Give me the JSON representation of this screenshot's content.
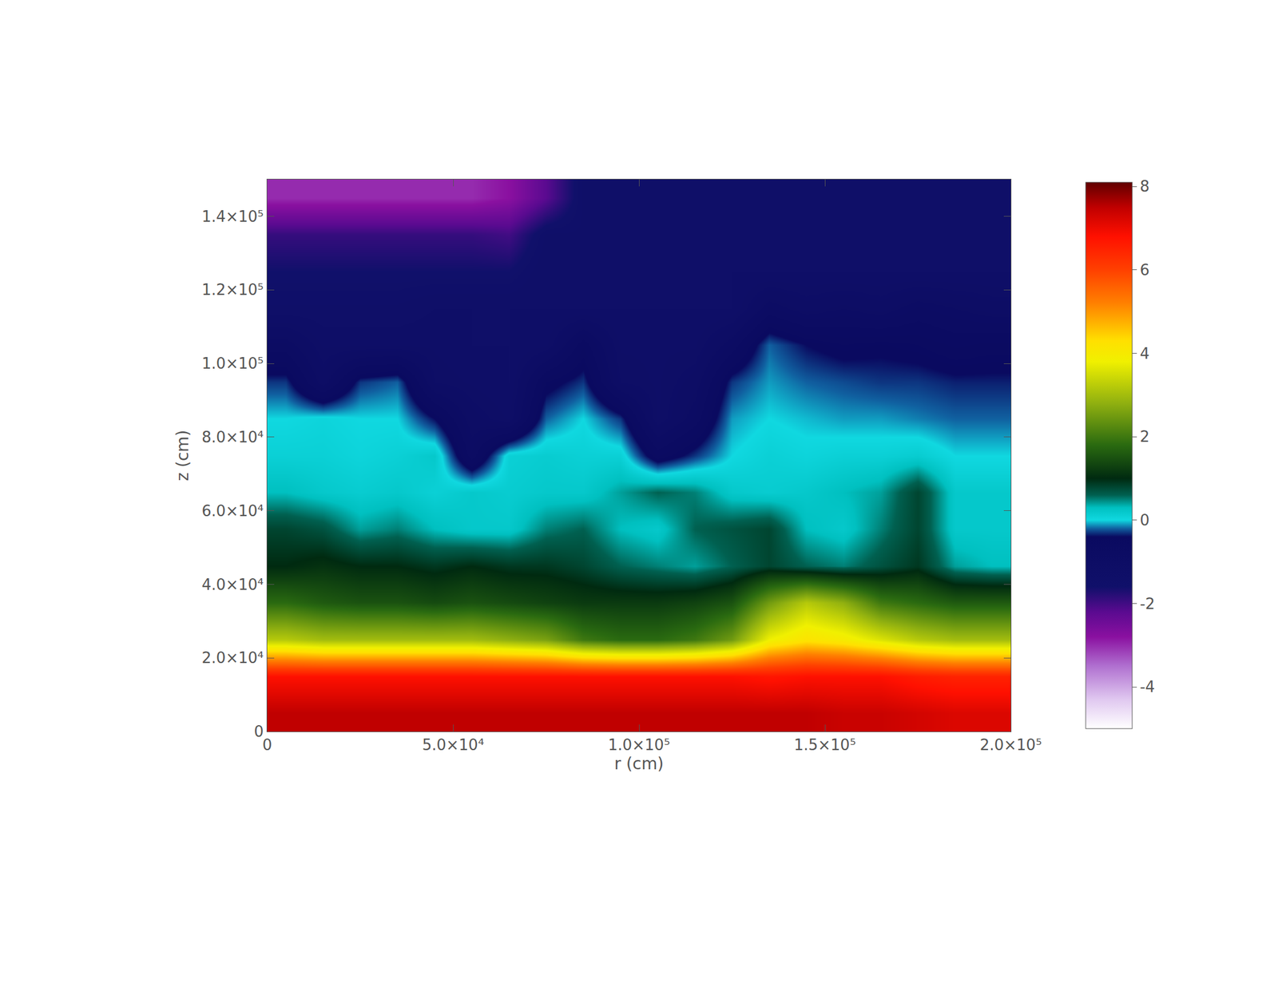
{
  "chart_data": {
    "type": "heatmap",
    "x_label": "r (cm)",
    "y_label": "z (cm)",
    "xlim": [
      0,
      200000
    ],
    "ylim": [
      0,
      150000
    ],
    "xticks": [
      0,
      {
        "value": 50000,
        "label": "5.0×10⁴"
      },
      {
        "value": 100000,
        "label": "1.0×10⁵"
      },
      {
        "value": 150000,
        "label": "1.5×10⁵"
      },
      {
        "value": 200000,
        "label": "2.0×10⁵"
      }
    ],
    "yticks": [
      0,
      {
        "value": 20000,
        "label": "2.0×10⁴"
      },
      {
        "value": 40000,
        "label": "4.0×10⁴"
      },
      {
        "value": 60000,
        "label": "6.0×10⁴"
      },
      {
        "value": 80000,
        "label": "8.0×10⁴"
      },
      {
        "value": 100000,
        "label": "1.0×10⁵"
      },
      {
        "value": 120000,
        "label": "1.2×10⁵"
      },
      {
        "value": 140000,
        "label": "1.4×10⁵"
      }
    ],
    "x": [
      5000,
      15000,
      25000,
      35000,
      45000,
      55000,
      65000,
      75000,
      85000,
      95000,
      105000,
      115000,
      125000,
      135000,
      145000,
      155000,
      165000,
      175000,
      185000,
      195000
    ],
    "y": [
      5000,
      15000,
      25000,
      35000,
      45000,
      55000,
      65000,
      75000,
      85000,
      95000,
      105000,
      115000,
      125000,
      135000,
      145000
    ],
    "cells": [
      [
        7.5,
        7.5,
        7.5,
        7.5,
        7.5,
        7.5,
        7.5,
        7.5,
        7.5,
        7.5,
        7.5,
        7.5,
        7.5,
        7.5,
        7.5,
        7.4,
        7.4,
        7.3,
        7.2,
        7.2
      ],
      [
        6.8,
        6.8,
        6.8,
        6.8,
        6.8,
        6.8,
        6.8,
        6.8,
        6.8,
        6.8,
        6.8,
        6.8,
        6.8,
        6.7,
        6.8,
        6.8,
        6.8,
        6.6,
        6.5,
        6.5
      ],
      [
        3.2,
        3.0,
        3.0,
        3.0,
        3.0,
        3.0,
        2.8,
        2.6,
        2.0,
        1.8,
        1.8,
        2.0,
        2.5,
        3.8,
        4.2,
        4.0,
        3.6,
        3.2,
        3.0,
        3.0
      ],
      [
        1.8,
        1.6,
        1.5,
        1.5,
        1.4,
        1.5,
        1.4,
        1.3,
        1.2,
        1.2,
        1.2,
        1.3,
        1.5,
        2.5,
        3.2,
        2.8,
        2.0,
        1.8,
        1.6,
        1.6
      ],
      [
        1.0,
        1.1,
        1.0,
        1.0,
        0.9,
        1.0,
        0.9,
        0.9,
        0.8,
        0.6,
        0.5,
        0.4,
        0.6,
        0.8,
        0.6,
        0.5,
        0.7,
        0.9,
        0.4,
        0.3
      ],
      [
        0.8,
        0.7,
        0.4,
        0.5,
        0.3,
        0.2,
        0.2,
        0.5,
        0.6,
        0.3,
        0.2,
        0.6,
        0.7,
        0.8,
        0.3,
        0.2,
        0.5,
        0.8,
        0.2,
        0.2
      ],
      [
        0.3,
        0.2,
        0.15,
        0.2,
        0.1,
        0.2,
        0.15,
        0.2,
        0.2,
        0.4,
        0.6,
        0.5,
        0.2,
        0.15,
        0.2,
        0.3,
        0.4,
        0.8,
        0.2,
        0.2
      ],
      [
        0.1,
        0.1,
        0.05,
        0.1,
        0.2,
        -0.8,
        0.1,
        0.15,
        0.1,
        0.1,
        -0.6,
        -0.3,
        0.0,
        0.1,
        0.05,
        0.1,
        0.1,
        0.15,
        0.0,
        0.0
      ],
      [
        0.0,
        0.05,
        0.0,
        0.0,
        -0.4,
        -1.0,
        -1.2,
        -0.2,
        0.0,
        -0.3,
        -1.2,
        -0.8,
        -0.1,
        0.0,
        -0.05,
        -0.1,
        -0.1,
        -0.15,
        -0.2,
        -0.2
      ],
      [
        -0.3,
        -1.0,
        -0.3,
        -0.2,
        -1.1,
        -1.2,
        -1.3,
        -0.5,
        -0.3,
        -1.1,
        -1.2,
        -1.0,
        -0.3,
        -0.1,
        -0.2,
        -0.25,
        -0.3,
        -0.3,
        -0.35,
        -0.35
      ],
      [
        -0.8,
        -1.2,
        -1.2,
        -1.2,
        -1.2,
        -1.3,
        -1.3,
        -1.2,
        -0.6,
        -1.2,
        -1.2,
        -1.2,
        -0.8,
        -0.2,
        -0.4,
        -0.5,
        -0.45,
        -0.5,
        -0.6,
        -0.55
      ],
      [
        -1.4,
        -1.4,
        -1.4,
        -1.4,
        -1.3,
        -1.3,
        -1.3,
        -1.3,
        -1.3,
        -1.3,
        -1.3,
        -1.3,
        -1.3,
        -0.8,
        -1.0,
        -0.9,
        -1.0,
        -0.8,
        -0.9,
        -1.0
      ],
      [
        -1.6,
        -1.6,
        -1.6,
        -1.6,
        -1.6,
        -1.6,
        -1.6,
        -1.3,
        -1.3,
        -1.3,
        -1.3,
        -1.3,
        -1.3,
        -1.3,
        -1.3,
        -1.3,
        -1.3,
        -1.3,
        -1.3,
        -1.3
      ],
      [
        -1.9,
        -1.9,
        -1.9,
        -1.9,
        -1.9,
        -1.9,
        -2.0,
        -1.4,
        -1.4,
        -1.4,
        -1.4,
        -1.4,
        -1.4,
        -1.4,
        -1.4,
        -1.4,
        -1.4,
        -1.4,
        -1.4,
        -1.4
      ],
      [
        -3.0,
        -3.0,
        -3.0,
        -3.0,
        -3.0,
        -3.0,
        -2.8,
        -2.2,
        -1.4,
        -1.4,
        -1.4,
        -1.4,
        -1.4,
        -1.4,
        -1.4,
        -1.4,
        -1.4,
        -1.4,
        -1.4,
        -1.4
      ]
    ],
    "colorbar_range": [
      -5,
      8.1
    ],
    "colorbar_ticks": [
      -4,
      -2,
      0,
      2,
      4,
      6,
      8
    ]
  }
}
